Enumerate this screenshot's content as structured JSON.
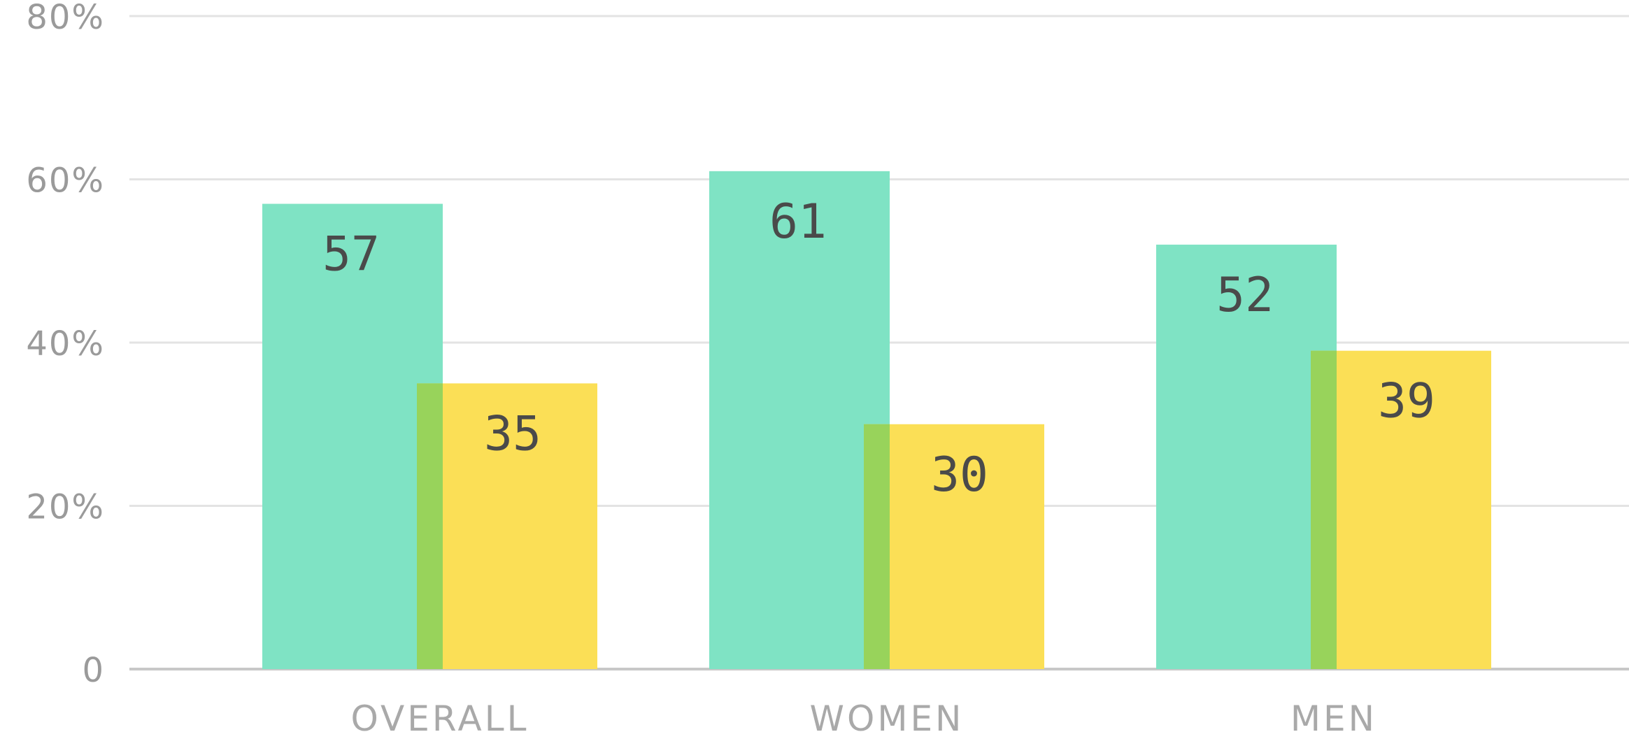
{
  "chart_data": {
    "type": "bar",
    "categories": [
      "OVERALL",
      "WOMEN",
      "MEN"
    ],
    "series": [
      {
        "values": [
          57,
          61,
          52
        ],
        "color": "#7fe3c4"
      },
      {
        "values": [
          35,
          30,
          39
        ],
        "color": "#fbdf56"
      }
    ],
    "overlap_color": "#98d35b",
    "y_tick_labels": [
      "0",
      "20%",
      "40%",
      "60%",
      "80%"
    ],
    "y_tick_values": [
      0,
      20,
      40,
      60,
      80
    ],
    "ylim": [
      0,
      80
    ],
    "grid": true,
    "gridline_color": "#e3e3e3",
    "baseline_color": "#c8c8c8",
    "data_labels": true
  }
}
